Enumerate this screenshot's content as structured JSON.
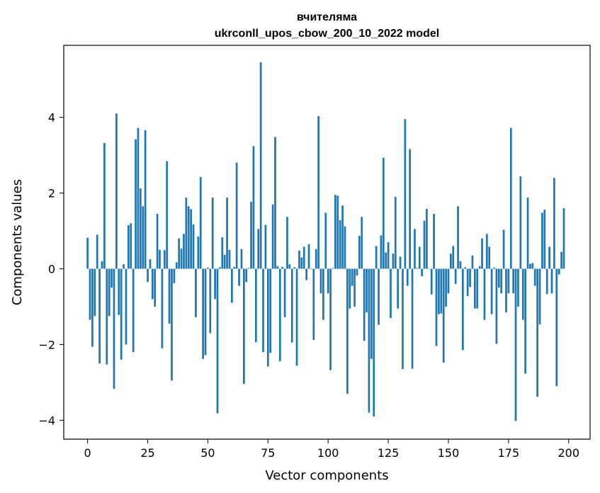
{
  "chart_data": {
    "type": "bar",
    "title_line1": "вчителяма",
    "title_line2": "ukrconll_upos_cbow_200_10_2022 model",
    "xlabel": "Vector components",
    "ylabel": "Components values",
    "xlim": [
      -9.9,
      208.9
    ],
    "ylim": [
      -4.5,
      5.9
    ],
    "xticks": [
      0,
      25,
      50,
      75,
      100,
      125,
      150,
      175,
      200
    ],
    "yticks": [
      -4,
      -2,
      0,
      2,
      4
    ],
    "ytick_labels": [
      "−4",
      "−2",
      "0",
      "2",
      "4"
    ],
    "grid": false,
    "bar_color": "#1f77b4",
    "bar_width": 0.8,
    "values": [
      0.82,
      -1.35,
      -2.06,
      -1.25,
      0.9,
      -2.5,
      0.2,
      3.32,
      -2.53,
      -1.25,
      -0.5,
      -3.17,
      4.1,
      -1.22,
      -2.4,
      0.12,
      -2.0,
      1.15,
      1.2,
      -2.2,
      3.42,
      3.72,
      2.12,
      1.65,
      3.66,
      -0.35,
      0.25,
      -0.8,
      -1.0,
      1.45,
      0.5,
      -2.1,
      0.49,
      2.84,
      -1.45,
      -2.95,
      -0.38,
      0.17,
      0.8,
      0.53,
      0.92,
      1.88,
      1.65,
      1.57,
      1.17,
      -1.28,
      0.85,
      2.42,
      -2.38,
      -2.28,
      0.03,
      -1.7,
      1.88,
      -0.8,
      -3.82,
      0.04,
      0.83,
      0.37,
      1.88,
      0.5,
      -0.9,
      0.05,
      2.8,
      -0.45,
      0.52,
      -3.04,
      -0.35,
      0.02,
      1.77,
      3.24,
      -1.94,
      1.05,
      5.45,
      -2.2,
      1.16,
      -2.58,
      -2.22,
      1.7,
      3.48,
      0.07,
      -2.44,
      0.05,
      -1.28,
      1.37,
      0.12,
      -1.95,
      0.04,
      -2.56,
      0.48,
      0.3,
      0.58,
      -0.3,
      0.65,
      -0.01,
      -1.88,
      0.52,
      4.03,
      -0.65,
      -1.35,
      1.48,
      -0.65,
      -2.68,
      0.02,
      1.95,
      1.93,
      1.28,
      1.67,
      1.12,
      -3.3,
      -1.05,
      -0.45,
      -1.0,
      -0.18,
      0.87,
      1.37,
      -1.9,
      -1.15,
      -3.8,
      -2.38,
      -3.9,
      0.6,
      -1.48,
      0.88,
      2.93,
      0.43,
      0.7,
      -1.3,
      0.4,
      1.9,
      -1.05,
      0.32,
      -2.65,
      3.95,
      -0.45,
      3.16,
      -2.64,
      1.05,
      0.02,
      0.58,
      -0.2,
      1.27,
      1.58,
      0.01,
      -0.68,
      1.45,
      -2.04,
      -1.2,
      -1.18,
      -2.48,
      -1.0,
      -0.65,
      0.4,
      0.6,
      -0.4,
      1.65,
      0.2,
      -2.15,
      0.04,
      -0.72,
      -0.48,
      0.35,
      -1.05,
      -1.05,
      0.07,
      0.8,
      -1.35,
      0.92,
      0.58,
      -1.2,
      0.03,
      -1.98,
      -0.5,
      -0.65,
      1.03,
      -1.15,
      -0.65,
      3.72,
      -0.65,
      -4.02,
      -1.0,
      2.44,
      -1.35,
      -2.77,
      1.88,
      0.13,
      0.15,
      -0.45,
      -3.38,
      -1.47,
      1.48,
      1.56,
      -0.67,
      0.58,
      -0.65,
      2.4,
      -3.1,
      -0.15,
      0.45,
      1.6
    ]
  }
}
